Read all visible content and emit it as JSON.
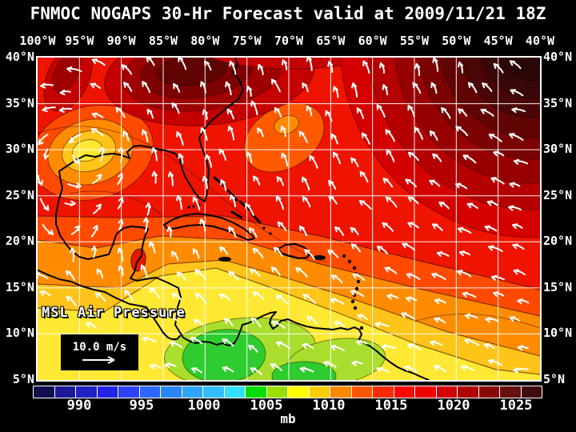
{
  "title": "FNMOC NOGAPS 30-Hr Forecast valid at 2009/11/21 18Z",
  "map": {
    "overlay_label": "MSL Air Pressure",
    "wind_scale_label": "10.0 m/s",
    "axes": {
      "lon_labels": [
        "100°W",
        "95°W",
        "90°W",
        "85°W",
        "80°W",
        "75°W",
        "70°W",
        "65°W",
        "60°W",
        "55°W",
        "50°W",
        "45°W",
        "40°W"
      ],
      "lat_labels": [
        "40°N",
        "35°N",
        "30°N",
        "25°N",
        "20°N",
        "15°N",
        "10°N",
        "5°N"
      ]
    }
  },
  "colorbar": {
    "unit_label": "mb",
    "tick_labels": [
      "990",
      "995",
      "1000",
      "1005",
      "1010",
      "1015",
      "1020",
      "1025"
    ],
    "segment_colors": [
      "#10104e",
      "#1a1a99",
      "#2121c4",
      "#2323e8",
      "#2b44fa",
      "#2b66ff",
      "#2b85ff",
      "#30a3ff",
      "#33bfff",
      "#33e0ff",
      "#00dd00",
      "#99e000",
      "#ffff00",
      "#ffcc00",
      "#ff8800",
      "#ff5500",
      "#ff2b00",
      "#ff0800",
      "#f00000",
      "#d40008",
      "#b00000",
      "#8c0a0a",
      "#661010",
      "#3e0e0e"
    ]
  },
  "palette": {
    "base_red": "#ef1400",
    "orange_red": "#ff4a00",
    "orange": "#ff8c00",
    "gold": "#ffc419",
    "yellow": "#ffe833",
    "yellow_green": "#aade2e",
    "green": "#2fcc2f",
    "high_rings_center": [
      "#c40000",
      "#9e0000",
      "#7c0101",
      "#600303"
    ],
    "ne_rings": [
      "#d40000",
      "#b40000",
      "#960000",
      "#7a0202",
      "#600404",
      "#4a0606",
      "#380707",
      "#2b0606"
    ],
    "grid": "#ffffff",
    "coast": "#000000",
    "arrows": "#ffffff",
    "background": "#000000"
  },
  "chart_data": {
    "type": "heatmap",
    "title": "FNMOC NOGAPS 30-Hr Forecast valid at 2009/11/21 18Z",
    "parameter": "MSL Air Pressure",
    "units": "mb",
    "lon_range_deg_w": [
      100,
      40
    ],
    "lat_range_deg_n": [
      5,
      40
    ],
    "grid_interval_deg": 5,
    "colorbar_ticks_mb": [
      990,
      995,
      1000,
      1005,
      1010,
      1015,
      1020,
      1025
    ],
    "colorbar_approx_range_mb": [
      987,
      1028
    ],
    "wind_reference_speed": "10.0 m/s",
    "features": [
      {
        "kind": "high",
        "approx_value_mb": 1026,
        "approx_location": "NW Atlantic near 45W 38N (dark maroon maximum, top-right)"
      },
      {
        "kind": "high",
        "approx_value_mb": 1022,
        "approx_location": "Southeast US near 88W 38N (dark red ridge, top-center)"
      },
      {
        "kind": "low",
        "approx_value_mb": 1010,
        "approx_location": "Texas Gulf coast near 96W 29N (yellow minimum)"
      },
      {
        "kind": "low",
        "approx_value_mb": 1006,
        "approx_location": "Colombia/Panama near 76W 6N (green minimum)"
      },
      {
        "kind": "flow",
        "description": "Easterly trade winds south of 20N; clockwise circulation around Atlantic high"
      }
    ]
  }
}
